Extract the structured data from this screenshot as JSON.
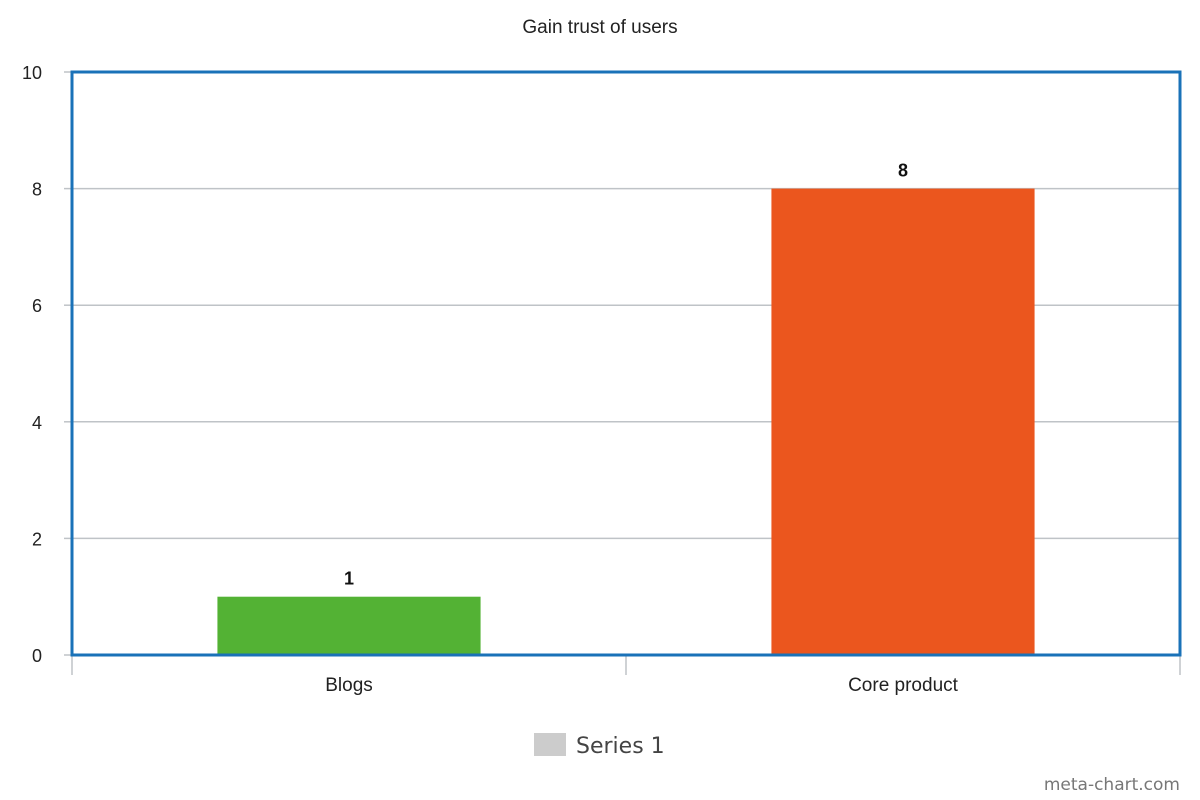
{
  "chart_data": {
    "type": "bar",
    "title": "Gain trust of users",
    "categories": [
      "Blogs",
      "Core product"
    ],
    "series": [
      {
        "name": "Series 1",
        "values": [
          1,
          8
        ]
      }
    ],
    "bar_colors": [
      "#53b234",
      "#eb561e"
    ],
    "ylim": [
      0,
      10
    ],
    "yticks": [
      0,
      2,
      4,
      6,
      8,
      10
    ],
    "grid": true,
    "legend_position": "bottom",
    "legend_color": "#cccccc",
    "frame_color": "#1a72b8",
    "watermark": "meta-chart.com"
  }
}
